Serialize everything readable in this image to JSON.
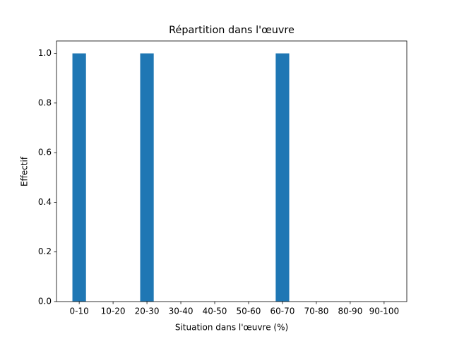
{
  "chart_data": {
    "type": "bar",
    "title": "Répartition dans l'œuvre",
    "x_label": "Situation dans l'œuvre (%)",
    "y_label": "Effectif",
    "categories": [
      "0-10",
      "10-20",
      "20-30",
      "30-40",
      "40-50",
      "50-60",
      "60-70",
      "70-80",
      "80-90",
      "90-100"
    ],
    "values": [
      1,
      0,
      1,
      0,
      0,
      0,
      1,
      0,
      0,
      0
    ],
    "color": "#1f77b4",
    "ylim": [
      0,
      1.05
    ],
    "yticks": [
      {
        "value": 0,
        "label": "0.0"
      },
      {
        "value": 0.2,
        "label": "0.2"
      },
      {
        "value": 0.4,
        "label": "0.4"
      },
      {
        "value": 0.6,
        "label": "0.6"
      },
      {
        "value": 0.8,
        "label": "0.8"
      },
      {
        "value": 1,
        "label": "1.0"
      }
    ],
    "grid": false
  }
}
